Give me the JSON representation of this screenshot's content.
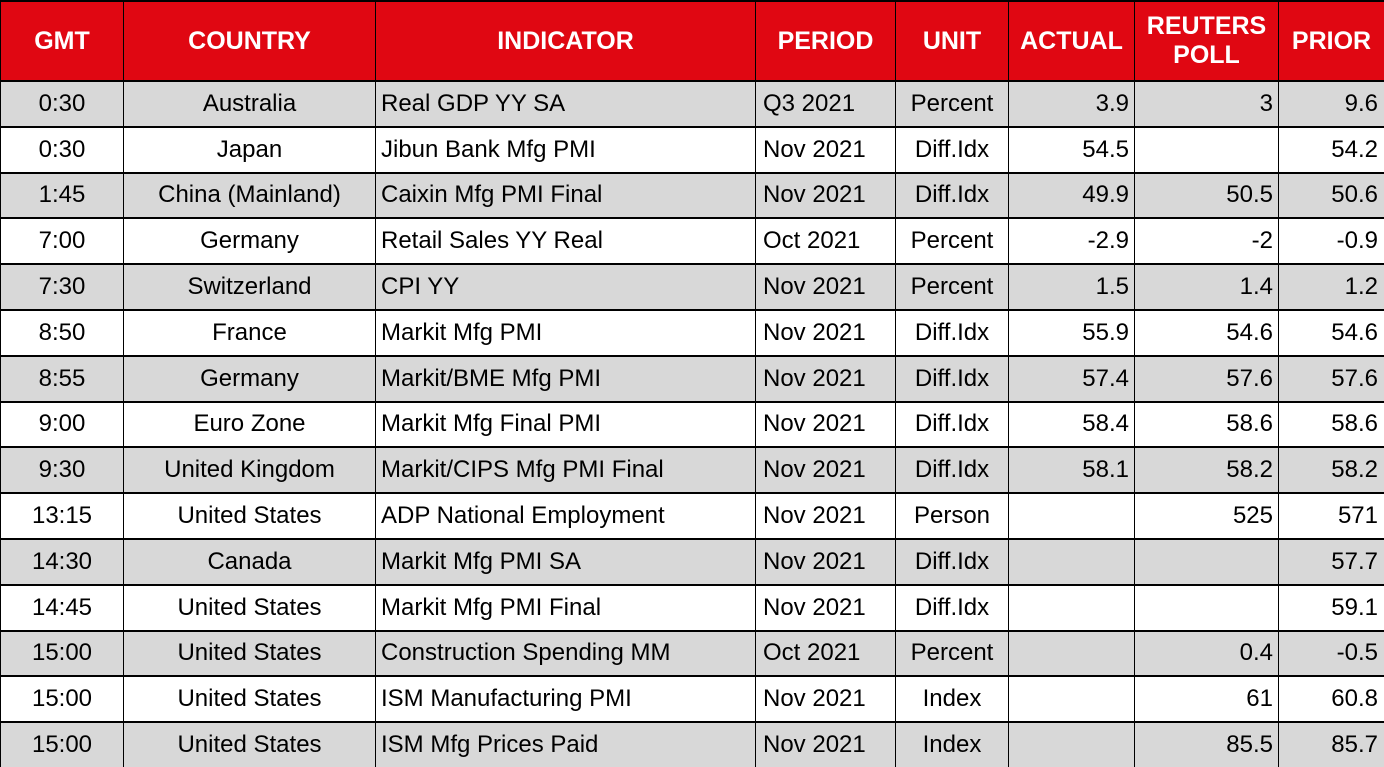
{
  "chart_data": {
    "type": "table",
    "columns": [
      "GMT",
      "COUNTRY",
      "INDICATOR",
      "PERIOD",
      "UNIT",
      "ACTUAL",
      "REUTERS POLL",
      "PRIOR"
    ],
    "rows": [
      [
        "0:30",
        "Australia",
        "Real GDP YY SA",
        "Q3 2021",
        "Percent",
        "3.9",
        "3",
        "9.6"
      ],
      [
        "0:30",
        "Japan",
        "Jibun Bank Mfg PMI",
        "Nov 2021",
        "Diff.Idx",
        "54.5",
        "",
        "54.2"
      ],
      [
        "1:45",
        "China (Mainland)",
        "Caixin Mfg PMI Final",
        "Nov 2021",
        "Diff.Idx",
        "49.9",
        "50.5",
        "50.6"
      ],
      [
        "7:00",
        "Germany",
        "Retail Sales YY Real",
        "Oct 2021",
        "Percent",
        "-2.9",
        "-2",
        "-0.9"
      ],
      [
        "7:30",
        "Switzerland",
        "CPI YY",
        "Nov 2021",
        "Percent",
        "1.5",
        "1.4",
        "1.2"
      ],
      [
        "8:50",
        "France",
        "Markit Mfg PMI",
        "Nov 2021",
        "Diff.Idx",
        "55.9",
        "54.6",
        "54.6"
      ],
      [
        "8:55",
        "Germany",
        "Markit/BME Mfg PMI",
        "Nov 2021",
        "Diff.Idx",
        "57.4",
        "57.6",
        "57.6"
      ],
      [
        "9:00",
        "Euro Zone",
        "Markit Mfg Final PMI",
        "Nov 2021",
        "Diff.Idx",
        "58.4",
        "58.6",
        "58.6"
      ],
      [
        "9:30",
        "United Kingdom",
        "Markit/CIPS Mfg PMI Final",
        "Nov 2021",
        "Diff.Idx",
        "58.1",
        "58.2",
        "58.2"
      ],
      [
        "13:15",
        "United States",
        "ADP National Employment",
        "Nov 2021",
        "Person",
        "",
        "525",
        "571"
      ],
      [
        "14:30",
        "Canada",
        "Markit Mfg PMI SA",
        "Nov 2021",
        "Diff.Idx",
        "",
        "",
        "57.7"
      ],
      [
        "14:45",
        "United States",
        "Markit Mfg PMI Final",
        "Nov 2021",
        "Diff.Idx",
        "",
        "",
        "59.1"
      ],
      [
        "15:00",
        "United States",
        "Construction Spending MM",
        "Oct 2021",
        "Percent",
        "",
        "0.4",
        "-0.5"
      ],
      [
        "15:00",
        "United States",
        "ISM Manufacturing PMI",
        "Nov 2021",
        "Index",
        "",
        "61",
        "60.8"
      ],
      [
        "15:00",
        "United States",
        "ISM Mfg Prices Paid",
        "Nov 2021",
        "Index",
        "",
        "85.5",
        "85.7"
      ]
    ],
    "layout": {
      "header_position": "top",
      "row_striping": "alternating (first row shaded)",
      "grid": "on"
    }
  },
  "colors": {
    "header_bg": "#e00712",
    "header_text": "#ffffff",
    "row_stripe_bg": "#d8d8d8",
    "row_bg": "#ffffff",
    "border": "#000000",
    "cell_text": "#000000"
  }
}
